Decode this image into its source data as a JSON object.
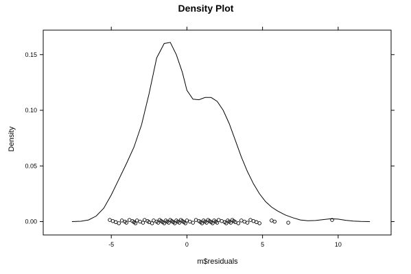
{
  "chart_data": {
    "type": "line",
    "title": "Density Plot",
    "xlabel": "m$residuals",
    "ylabel": "Density",
    "xlim": [
      -9.5,
      13.5
    ],
    "ylim": [
      -0.012,
      0.172
    ],
    "x_ticks": [
      -5,
      0,
      5,
      10
    ],
    "x_tick_labels": [
      "-5",
      "0",
      "5",
      "10"
    ],
    "y_ticks": [
      0.0,
      0.05,
      0.1,
      0.15
    ],
    "y_tick_labels": [
      "0.00",
      "0.05",
      "0.10",
      "0.15"
    ],
    "grid": false,
    "legend": "none",
    "series": [
      {
        "values_x": [
          -7.6,
          -7.0,
          -6.5,
          -6.0,
          -5.5,
          -5.0,
          -4.5,
          -4.0,
          -3.5,
          -3.0,
          -2.5,
          -2.0,
          -1.5,
          -1.1,
          -0.7,
          -0.3,
          0.0,
          0.4,
          0.8,
          1.2,
          1.6,
          2.0,
          2.4,
          2.8,
          3.2,
          3.6,
          4.0,
          4.4,
          4.8,
          5.2,
          5.6,
          6.0,
          6.5,
          7.0,
          7.5,
          8.0,
          8.5,
          9.0,
          9.5,
          10.0,
          10.5,
          11.0,
          11.5,
          12.1
        ],
        "values_y": [
          0.0,
          0.0003,
          0.0015,
          0.005,
          0.012,
          0.024,
          0.038,
          0.052,
          0.067,
          0.087,
          0.115,
          0.147,
          0.16,
          0.161,
          0.15,
          0.134,
          0.118,
          0.11,
          0.1095,
          0.1115,
          0.1115,
          0.108,
          0.1,
          0.088,
          0.073,
          0.058,
          0.045,
          0.034,
          0.025,
          0.018,
          0.013,
          0.0095,
          0.006,
          0.0035,
          0.0015,
          0.0008,
          0.001,
          0.0018,
          0.0025,
          0.0022,
          0.0012,
          0.0005,
          0.0001,
          0.0
        ]
      }
    ],
    "rug": [
      -5.1,
      -4.9,
      -4.7,
      -4.5,
      -4.3,
      -4.1,
      -4.0,
      -3.8,
      -3.6,
      -3.5,
      -3.4,
      -3.3,
      -3.1,
      -2.9,
      -2.8,
      -2.6,
      -2.5,
      -2.3,
      -2.2,
      -2.0,
      -1.9,
      -1.8,
      -1.7,
      -1.6,
      -1.5,
      -1.4,
      -1.3,
      -1.2,
      -1.1,
      -1.0,
      -0.9,
      -0.8,
      -0.7,
      -0.6,
      -0.5,
      -0.4,
      -0.3,
      -0.2,
      -0.1,
      0.0,
      0.2,
      0.4,
      0.6,
      0.8,
      0.9,
      1.0,
      1.1,
      1.2,
      1.3,
      1.4,
      1.5,
      1.6,
      1.7,
      1.8,
      1.9,
      2.0,
      2.1,
      2.3,
      2.5,
      2.6,
      2.7,
      2.8,
      2.9,
      3.0,
      3.1,
      3.2,
      3.4,
      3.6,
      3.8,
      4.0,
      4.2,
      4.4,
      4.6,
      4.8,
      5.6,
      5.8,
      6.7,
      9.6
    ]
  }
}
